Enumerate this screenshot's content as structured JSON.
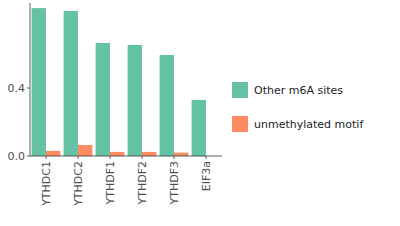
{
  "chart_data": {
    "type": "bar",
    "categories": [
      "YTHDC1",
      "YTHDC2",
      "YTHDF1",
      "YTHDF2",
      "YTHDF3",
      "EIF3a"
    ],
    "series": [
      {
        "name": "Other m6A sites",
        "color": "#66c2a5",
        "values": [
          0.87,
          0.853,
          0.665,
          0.653,
          0.594,
          0.33
        ]
      },
      {
        "name": "unmethylated motif",
        "color": "#fc8d62",
        "values": [
          0.03,
          0.065,
          0.024,
          0.024,
          0.02,
          0
        ]
      }
    ],
    "ylim": [
      0,
      0.9
    ],
    "yticks": [
      {
        "value": 0,
        "label": "0.0"
      },
      {
        "value": 0.4,
        "label": "0.4"
      }
    ],
    "grid": false,
    "legend": "right"
  }
}
